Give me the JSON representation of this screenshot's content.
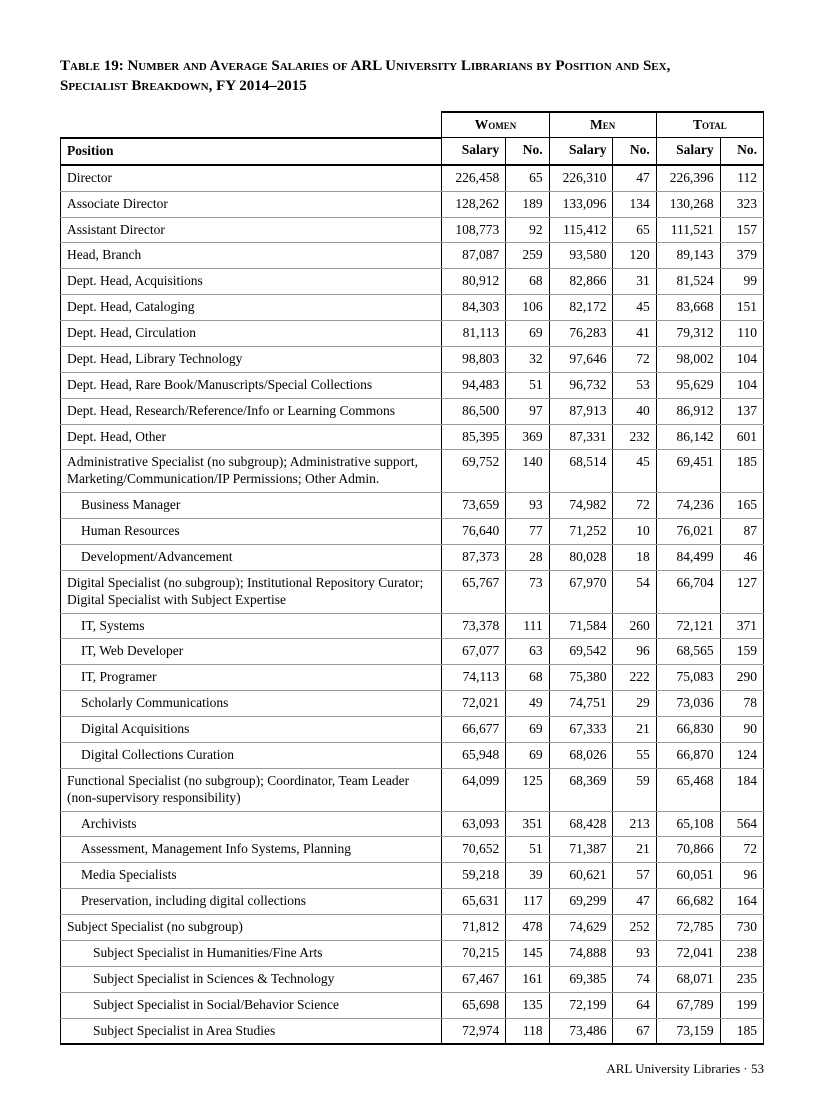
{
  "title_line1": "Table 19: Number and Average Salaries of ARL University Librarians by Position and Sex,",
  "title_line2": "Specialist Breakdown, FY 2014–2015",
  "headers": {
    "women": "Women",
    "men": "Men",
    "total": "Total",
    "position": "Position",
    "salary": "Salary",
    "no": "No."
  },
  "footer": "ARL University Libraries · 53",
  "rows": [
    {
      "label": "Director",
      "indent": 0,
      "w_sal": "226,458",
      "w_no": "65",
      "m_sal": "226,310",
      "m_no": "47",
      "t_sal": "226,396",
      "t_no": "112"
    },
    {
      "label": "Associate Director",
      "indent": 0,
      "w_sal": "128,262",
      "w_no": "189",
      "m_sal": "133,096",
      "m_no": "134",
      "t_sal": "130,268",
      "t_no": "323"
    },
    {
      "label": "Assistant Director",
      "indent": 0,
      "w_sal": "108,773",
      "w_no": "92",
      "m_sal": "115,412",
      "m_no": "65",
      "t_sal": "111,521",
      "t_no": "157"
    },
    {
      "label": "Head, Branch",
      "indent": 0,
      "w_sal": "87,087",
      "w_no": "259",
      "m_sal": "93,580",
      "m_no": "120",
      "t_sal": "89,143",
      "t_no": "379"
    },
    {
      "label": "Dept. Head, Acquisitions",
      "indent": 0,
      "w_sal": "80,912",
      "w_no": "68",
      "m_sal": "82,866",
      "m_no": "31",
      "t_sal": "81,524",
      "t_no": "99"
    },
    {
      "label": "Dept. Head, Cataloging",
      "indent": 0,
      "w_sal": "84,303",
      "w_no": "106",
      "m_sal": "82,172",
      "m_no": "45",
      "t_sal": "83,668",
      "t_no": "151"
    },
    {
      "label": "Dept. Head, Circulation",
      "indent": 0,
      "w_sal": "81,113",
      "w_no": "69",
      "m_sal": "76,283",
      "m_no": "41",
      "t_sal": "79,312",
      "t_no": "110"
    },
    {
      "label": "Dept. Head, Library Technology",
      "indent": 0,
      "w_sal": "98,803",
      "w_no": "32",
      "m_sal": "97,646",
      "m_no": "72",
      "t_sal": "98,002",
      "t_no": "104"
    },
    {
      "label": "Dept. Head, Rare Book/Manuscripts/Special Collections",
      "indent": 0,
      "w_sal": "94,483",
      "w_no": "51",
      "m_sal": "96,732",
      "m_no": "53",
      "t_sal": "95,629",
      "t_no": "104"
    },
    {
      "label": "Dept. Head, Research/Reference/Info or Learning Commons",
      "indent": 0,
      "w_sal": "86,500",
      "w_no": "97",
      "m_sal": "87,913",
      "m_no": "40",
      "t_sal": "86,912",
      "t_no": "137"
    },
    {
      "label": "Dept. Head, Other",
      "indent": 0,
      "w_sal": "85,395",
      "w_no": "369",
      "m_sal": "87,331",
      "m_no": "232",
      "t_sal": "86,142",
      "t_no": "601"
    },
    {
      "label": "Administrative Specialist (no subgroup); Administrative support, Marketing/Communication/IP Permissions; Other Admin.",
      "indent": 0,
      "w_sal": "69,752",
      "w_no": "140",
      "m_sal": "68,514",
      "m_no": "45",
      "t_sal": "69,451",
      "t_no": "185"
    },
    {
      "label": "Business Manager",
      "indent": 1,
      "w_sal": "73,659",
      "w_no": "93",
      "m_sal": "74,982",
      "m_no": "72",
      "t_sal": "74,236",
      "t_no": "165"
    },
    {
      "label": "Human Resources",
      "indent": 1,
      "w_sal": "76,640",
      "w_no": "77",
      "m_sal": "71,252",
      "m_no": "10",
      "t_sal": "76,021",
      "t_no": "87"
    },
    {
      "label": "Development/Advancement",
      "indent": 1,
      "w_sal": "87,373",
      "w_no": "28",
      "m_sal": "80,028",
      "m_no": "18",
      "t_sal": "84,499",
      "t_no": "46"
    },
    {
      "label": "Digital Specialist (no subgroup); Institutional Repository Curator; Digital Specialist with Subject Expertise",
      "indent": 0,
      "w_sal": "65,767",
      "w_no": "73",
      "m_sal": "67,970",
      "m_no": "54",
      "t_sal": "66,704",
      "t_no": "127"
    },
    {
      "label": "IT, Systems",
      "indent": 1,
      "w_sal": "73,378",
      "w_no": "111",
      "m_sal": "71,584",
      "m_no": "260",
      "t_sal": "72,121",
      "t_no": "371"
    },
    {
      "label": "IT, Web Developer",
      "indent": 1,
      "w_sal": "67,077",
      "w_no": "63",
      "m_sal": "69,542",
      "m_no": "96",
      "t_sal": "68,565",
      "t_no": "159"
    },
    {
      "label": "IT, Programer",
      "indent": 1,
      "w_sal": "74,113",
      "w_no": "68",
      "m_sal": "75,380",
      "m_no": "222",
      "t_sal": "75,083",
      "t_no": "290"
    },
    {
      "label": "Scholarly Communications",
      "indent": 1,
      "w_sal": "72,021",
      "w_no": "49",
      "m_sal": "74,751",
      "m_no": "29",
      "t_sal": "73,036",
      "t_no": "78"
    },
    {
      "label": "Digital Acquisitions",
      "indent": 1,
      "w_sal": "66,677",
      "w_no": "69",
      "m_sal": "67,333",
      "m_no": "21",
      "t_sal": "66,830",
      "t_no": "90"
    },
    {
      "label": "Digital Collections Curation",
      "indent": 1,
      "w_sal": "65,948",
      "w_no": "69",
      "m_sal": "68,026",
      "m_no": "55",
      "t_sal": "66,870",
      "t_no": "124"
    },
    {
      "label": "Functional Specialist (no subgroup); Coordinator, Team Leader (non-supervisory responsibility)",
      "indent": 0,
      "w_sal": "64,099",
      "w_no": "125",
      "m_sal": "68,369",
      "m_no": "59",
      "t_sal": "65,468",
      "t_no": "184"
    },
    {
      "label": "Archivists",
      "indent": 1,
      "w_sal": "63,093",
      "w_no": "351",
      "m_sal": "68,428",
      "m_no": "213",
      "t_sal": "65,108",
      "t_no": "564"
    },
    {
      "label": "Assessment, Management Info Systems, Planning",
      "indent": 1,
      "w_sal": "70,652",
      "w_no": "51",
      "m_sal": "71,387",
      "m_no": "21",
      "t_sal": "70,866",
      "t_no": "72"
    },
    {
      "label": "Media Specialists",
      "indent": 1,
      "w_sal": "59,218",
      "w_no": "39",
      "m_sal": "60,621",
      "m_no": "57",
      "t_sal": "60,051",
      "t_no": "96"
    },
    {
      "label": "Preservation, including digital collections",
      "indent": 1,
      "w_sal": "65,631",
      "w_no": "117",
      "m_sal": "69,299",
      "m_no": "47",
      "t_sal": "66,682",
      "t_no": "164"
    },
    {
      "label": "Subject Specialist (no subgroup)",
      "indent": 0,
      "w_sal": "71,812",
      "w_no": "478",
      "m_sal": "74,629",
      "m_no": "252",
      "t_sal": "72,785",
      "t_no": "730"
    },
    {
      "label": "Subject Specialist in Humanities/Fine Arts",
      "indent": 2,
      "w_sal": "70,215",
      "w_no": "145",
      "m_sal": "74,888",
      "m_no": "93",
      "t_sal": "72,041",
      "t_no": "238"
    },
    {
      "label": "Subject Specialist in Sciences & Technology",
      "indent": 2,
      "w_sal": "67,467",
      "w_no": "161",
      "m_sal": "69,385",
      "m_no": "74",
      "t_sal": "68,071",
      "t_no": "235"
    },
    {
      "label": "Subject Specialist in Social/Behavior Science",
      "indent": 2,
      "w_sal": "65,698",
      "w_no": "135",
      "m_sal": "72,199",
      "m_no": "64",
      "t_sal": "67,789",
      "t_no": "199"
    },
    {
      "label": "Subject Specialist in Area Studies",
      "indent": 2,
      "w_sal": "72,974",
      "w_no": "118",
      "m_sal": "73,486",
      "m_no": "67",
      "t_sal": "73,159",
      "t_no": "185"
    }
  ]
}
